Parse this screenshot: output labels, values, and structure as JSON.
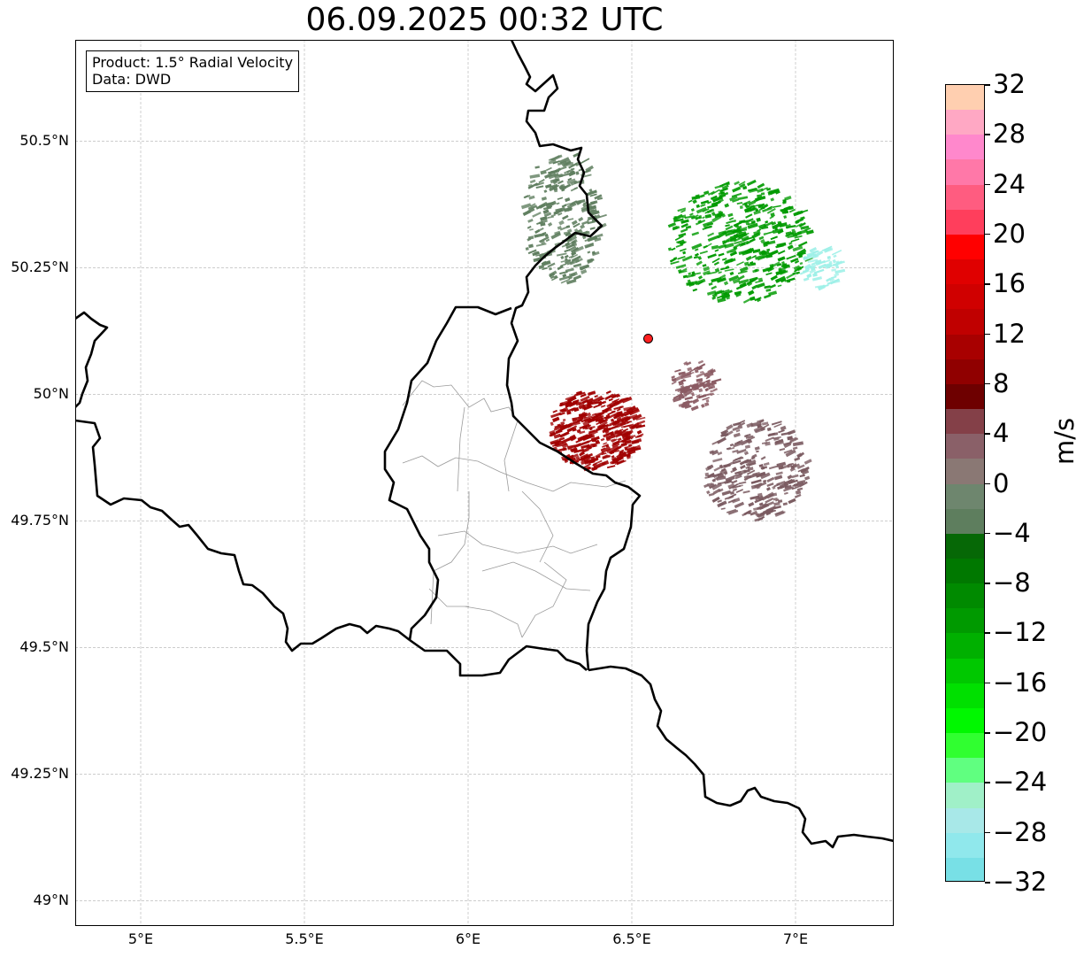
{
  "title": "06.09.2025 00:32 UTC",
  "info": {
    "product": "Product: 1.5° Radial Velocity",
    "data": "Data: DWD"
  },
  "map": {
    "lon_range": [
      4.8,
      7.3
    ],
    "lat_range": [
      48.95,
      50.7
    ],
    "lat_ticks": [
      {
        "value": 50.5,
        "label": "50.5°N"
      },
      {
        "value": 50.25,
        "label": "50.25°N"
      },
      {
        "value": 50.0,
        "label": "50°N"
      },
      {
        "value": 49.75,
        "label": "49.75°N"
      },
      {
        "value": 49.5,
        "label": "49.5°N"
      },
      {
        "value": 49.25,
        "label": "49.25°N"
      },
      {
        "value": 49.0,
        "label": "49°N"
      }
    ],
    "lon_ticks": [
      {
        "value": 5.0,
        "label": "5°E"
      },
      {
        "value": 5.5,
        "label": "5.5°E"
      },
      {
        "value": 6.0,
        "label": "6°E"
      },
      {
        "value": 6.5,
        "label": "6.5°E"
      },
      {
        "value": 7.0,
        "label": "7°E"
      }
    ],
    "radar_site": {
      "lon": 6.55,
      "lat": 50.11,
      "color": "#ff2020"
    },
    "echo_regions": [
      {
        "name": "inbound-northeast",
        "lon": 6.82,
        "lat": 50.3,
        "rx": 0.22,
        "ry": 0.12,
        "color": "#009a00",
        "count": 420
      },
      {
        "name": "strong-inbound-east",
        "lon": 7.07,
        "lat": 50.25,
        "rx": 0.06,
        "ry": 0.04,
        "color": "#9ef0e8",
        "count": 60
      },
      {
        "name": "weak-north",
        "lon": 6.28,
        "lat": 50.35,
        "rx": 0.12,
        "ry": 0.13,
        "color": "#5f7e5f",
        "count": 260
      },
      {
        "name": "outbound-southwest",
        "lon": 6.38,
        "lat": 49.93,
        "rx": 0.14,
        "ry": 0.08,
        "color": "#a00000",
        "count": 380
      },
      {
        "name": "weak-southeast",
        "lon": 6.87,
        "lat": 49.85,
        "rx": 0.16,
        "ry": 0.1,
        "color": "#7a5a60",
        "count": 260
      },
      {
        "name": "weak-east",
        "lon": 6.68,
        "lat": 50.02,
        "rx": 0.07,
        "ry": 0.05,
        "color": "#8a5a62",
        "count": 90
      }
    ]
  },
  "colorbar": {
    "label": "m/s",
    "min": -32,
    "max": 32,
    "ticks": [
      {
        "value": 32,
        "label": "32"
      },
      {
        "value": 28,
        "label": "28"
      },
      {
        "value": 24,
        "label": "24"
      },
      {
        "value": 20,
        "label": "20"
      },
      {
        "value": 16,
        "label": "16"
      },
      {
        "value": 12,
        "label": "12"
      },
      {
        "value": 8,
        "label": "8"
      },
      {
        "value": 4,
        "label": "4"
      },
      {
        "value": 0,
        "label": "0"
      },
      {
        "value": -4,
        "label": "−4"
      },
      {
        "value": -8,
        "label": "−8"
      },
      {
        "value": -12,
        "label": "−12"
      },
      {
        "value": -16,
        "label": "−16"
      },
      {
        "value": -20,
        "label": "−20"
      },
      {
        "value": -24,
        "label": "−24"
      },
      {
        "value": -28,
        "label": "−28"
      },
      {
        "value": -32,
        "label": "−32"
      }
    ],
    "colors_top_to_bottom": [
      "#ffcfb0",
      "#ffa8c4",
      "#ff88cc",
      "#ff78a8",
      "#ff5c80",
      "#ff3e5c",
      "#ff0000",
      "#e00000",
      "#d00000",
      "#c00000",
      "#a80000",
      "#900000",
      "#6e0000",
      "#844048",
      "#8a6068",
      "#8a7874",
      "#6e866e",
      "#5e7e5e",
      "#066806",
      "#007800",
      "#008a00",
      "#009a00",
      "#00b000",
      "#00c800",
      "#00e000",
      "#00f800",
      "#30ff30",
      "#60ff80",
      "#a0f0c8",
      "#a8e8e8",
      "#90e8ec",
      "#78e0e6"
    ]
  }
}
